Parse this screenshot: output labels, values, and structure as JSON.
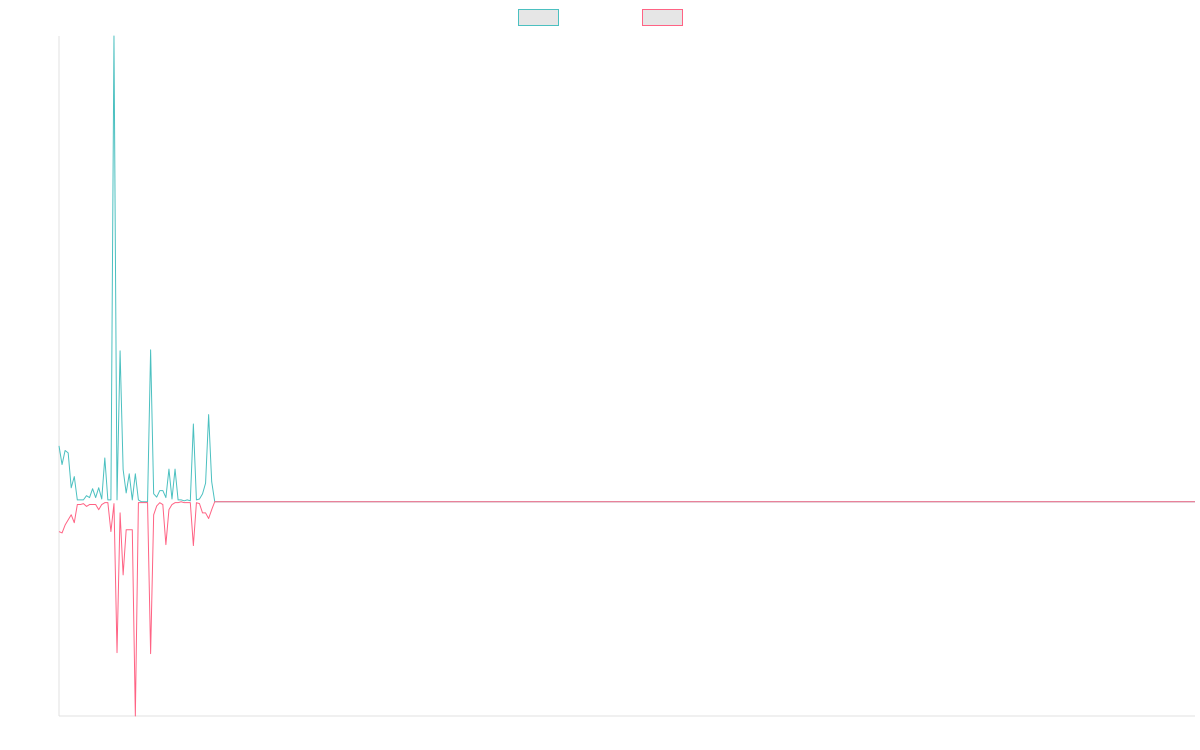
{
  "chart_data": {
    "type": "line",
    "legend": "top",
    "x": [
      0,
      1,
      2,
      3,
      4,
      5,
      6,
      7,
      8,
      9,
      10,
      11,
      12,
      13,
      14,
      15,
      16,
      17,
      18,
      19,
      20,
      21,
      22,
      23,
      24,
      25,
      26,
      27,
      28,
      29,
      30,
      31,
      32,
      33,
      34,
      35,
      36,
      37,
      38,
      39,
      40,
      41,
      42,
      43,
      44,
      45,
      46,
      47,
      48,
      49,
      50,
      51,
      372
    ],
    "xlim": [
      0,
      372
    ],
    "ylim": [
      -46,
      100
    ],
    "series": [
      {
        "color": "#4bc0c0",
        "values": [
          12,
          8,
          11,
          10.5,
          3,
          5.4,
          0.4,
          0.4,
          0.4,
          1.3,
          0.9,
          2.8,
          0.9,
          3,
          0.6,
          9.4,
          0.4,
          0.4,
          100,
          0.4,
          32.4,
          6.9,
          1.9,
          6,
          0.4,
          6,
          0.4,
          0,
          0,
          0,
          32.6,
          1.7,
          1,
          2.4,
          2.4,
          0.9,
          7,
          0.6,
          7,
          0.4,
          0.4,
          0.2,
          0.4,
          0.2,
          16.7,
          0.4,
          0.6,
          1.7,
          4,
          18.7,
          4.3,
          0,
          0
        ]
      },
      {
        "color": "#ff6384",
        "values": [
          -6.4,
          -6.7,
          -5,
          -3.9,
          -2.8,
          -4.5,
          -0.6,
          -0.6,
          -0.4,
          -1,
          -0.6,
          -0.6,
          -0.6,
          -1.7,
          -0.6,
          -0.2,
          -0.2,
          -6.4,
          -0.4,
          -32.4,
          -2.4,
          -15.7,
          -6,
          -6,
          -6,
          -46,
          -0.2,
          -0.2,
          -0.2,
          -0.2,
          -32.6,
          -2.8,
          -0.9,
          -0.2,
          -0.6,
          -9.2,
          -1.7,
          -0.6,
          -0.2,
          -0.2,
          0,
          -0.2,
          -0.2,
          -0.2,
          -9.4,
          -0.2,
          -0.4,
          -2.4,
          -2.4,
          -3.6,
          -1.7,
          0,
          0
        ]
      }
    ]
  }
}
